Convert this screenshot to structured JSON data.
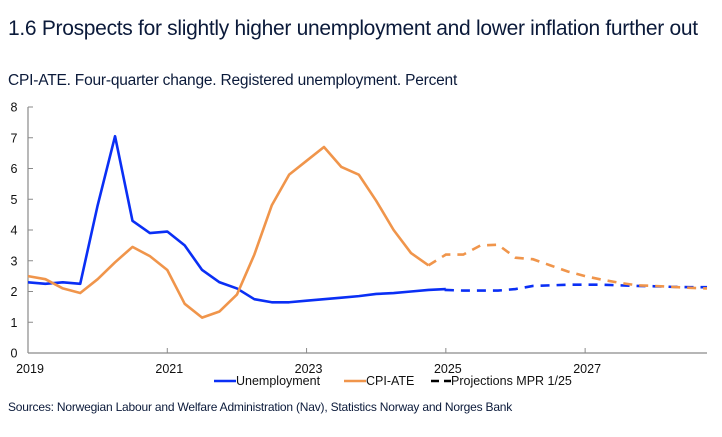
{
  "header": {
    "title": "1.6 Prospects for slightly higher unemployment and lower inflation further out",
    "subtitle": "CPI-ATE. Four-quarter change. Registered unemployment. Percent"
  },
  "footer": {
    "sources": "Sources: Norwegian Labour and Welfare Administration (Nav), Statistics Norway and Norges Bank"
  },
  "chart_data": {
    "type": "line",
    "title": "1.6 Prospects for slightly higher unemployment and lower inflation further out",
    "subtitle": "CPI-ATE. Four-quarter change. Registered unemployment. Percent",
    "xlabel": "",
    "ylabel": "Percent",
    "x_start": "2019Q1",
    "x_frequency": "quarterly",
    "x_range": [
      2019,
      2028.75
    ],
    "x_ticks": [
      "2019",
      "2021",
      "2023",
      "2025",
      "2027"
    ],
    "x_tick_values": [
      2019,
      2021,
      2023,
      2025,
      2027
    ],
    "ylim": [
      0,
      8
    ],
    "y_ticks": [
      "0",
      "1",
      "2",
      "3",
      "4",
      "5",
      "6",
      "7",
      "8"
    ],
    "grid": false,
    "legend_position": "bottom-center",
    "projection_start": "2025Q1",
    "series": [
      {
        "name": "Unemployment",
        "color": "#0a2ff5",
        "historical": [
          2.3,
          2.25,
          2.3,
          2.25,
          4.8,
          7.05,
          4.3,
          3.9,
          3.95,
          3.5,
          2.7,
          2.3,
          2.1,
          1.75,
          1.65,
          1.65,
          1.7,
          1.75,
          1.8,
          1.85,
          1.92,
          1.95,
          2.0,
          2.05,
          2.08
        ],
        "projection": [
          2.05,
          2.03,
          2.03,
          2.03,
          2.08,
          2.18,
          2.2,
          2.22,
          2.22,
          2.22,
          2.2,
          2.18,
          2.17,
          2.15,
          2.14,
          2.14
        ]
      },
      {
        "name": "CPI-ATE",
        "color": "#f0954b",
        "historical": [
          2.5,
          2.4,
          2.1,
          1.95,
          2.4,
          2.95,
          3.45,
          3.15,
          2.7,
          1.6,
          1.15,
          1.35,
          1.9,
          3.2,
          4.8,
          5.8,
          6.25,
          6.7,
          6.05,
          5.8,
          4.95,
          4.0,
          3.25,
          2.85
        ],
        "projection": [
          3.2,
          3.2,
          3.5,
          3.52,
          3.1,
          3.05,
          2.85,
          2.65,
          2.5,
          2.38,
          2.28,
          2.2,
          2.18,
          2.15,
          2.12,
          2.1
        ]
      }
    ],
    "legend": [
      {
        "label": "Unemployment",
        "style": "solid",
        "color": "#0a2ff5"
      },
      {
        "label": "CPI-ATE",
        "style": "solid",
        "color": "#f0954b"
      },
      {
        "label": "Projections MPR 1/25",
        "style": "dashed",
        "color": "#000000"
      }
    ]
  }
}
